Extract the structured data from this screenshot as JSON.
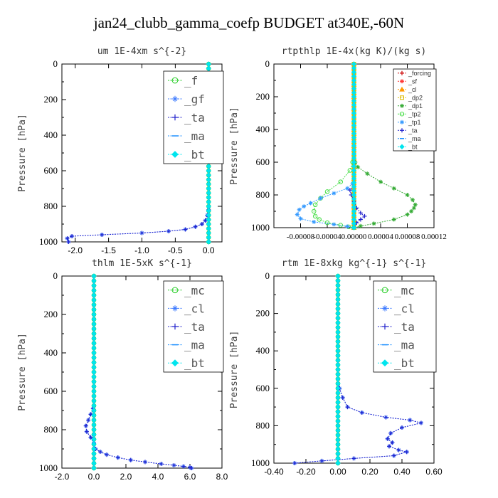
{
  "title": "jan24_clubb_gamma_coefp  BUDGET at340E,-60N",
  "chart_data": [
    {
      "type": "line",
      "title": "um  1E-4xm s^{-2}",
      "ylabel": "Pressure [hPa]",
      "xlim": [
        -2.2,
        0.2
      ],
      "ylim": [
        1000,
        0
      ],
      "xticks": [
        "-2.0",
        "-1.5",
        "-1.0",
        "-0.5",
        "0.0"
      ],
      "xtick_values": [
        -2.0,
        -1.5,
        -1.0,
        -0.5,
        0.0
      ],
      "yticks": [
        "0",
        "200",
        "400",
        "600",
        "800",
        "1000"
      ],
      "ytick_values": [
        0,
        200,
        400,
        600,
        800,
        1000
      ],
      "legend_placement": "top-right",
      "series": [
        {
          "name": "_f",
          "color": "#22cc22",
          "marker": "circle-open",
          "x": [
            0,
            0
          ],
          "y": [
            0,
            1000
          ]
        },
        {
          "name": "_gf",
          "color": "#3a78ff",
          "marker": "star",
          "x": [
            0,
            0,
            0,
            -0.02,
            -0.05,
            -0.1,
            -0.2,
            -0.35,
            -0.6,
            -1.0,
            -1.6,
            -2.05,
            -2.12,
            -2.1
          ],
          "y": [
            0,
            600,
            820,
            850,
            880,
            900,
            915,
            930,
            940,
            950,
            960,
            968,
            980,
            1000
          ]
        },
        {
          "name": "_ta",
          "color": "#2222cc",
          "marker": "plus",
          "x": [
            0,
            0,
            0,
            -0.02,
            -0.05,
            -0.1,
            -0.2,
            -0.35,
            -0.6,
            -1.0,
            -1.6,
            -2.05,
            -2.12,
            -2.1
          ],
          "y": [
            0,
            600,
            820,
            850,
            880,
            900,
            915,
            930,
            940,
            950,
            960,
            968,
            980,
            1000
          ]
        },
        {
          "name": "_ma",
          "color": "#1e90ff",
          "marker": "dash",
          "x": [
            0,
            0
          ],
          "y": [
            0,
            1000
          ]
        },
        {
          "name": "_bt",
          "color": "#00e5ee",
          "marker": "diamond",
          "x": [
            0,
            0
          ],
          "y": [
            0,
            1000
          ]
        }
      ]
    },
    {
      "type": "line",
      "title": "rtpthlp  1E-4x(kg K)/(kg s)",
      "ylabel": "Pressure [hPa]",
      "xlim": [
        -0.00012,
        0.00012
      ],
      "ylim": [
        1000,
        0
      ],
      "xticks": [
        "-0.00008",
        "-0.00004",
        "0.00000",
        "0.00004",
        "0.00008",
        "0.00012"
      ],
      "xtick_values": [
        -8e-05,
        -4e-05,
        0.0,
        4e-05,
        8e-05,
        0.00012
      ],
      "yticks": [
        "0",
        "200",
        "400",
        "600",
        "800",
        "1000"
      ],
      "ytick_values": [
        0,
        200,
        400,
        600,
        800,
        1000
      ],
      "legend_placement": "top-right",
      "series": [
        {
          "name": "_forcing",
          "color": "#cc0000",
          "marker": "plus",
          "x": [
            0,
            0
          ],
          "y": [
            0,
            1000
          ]
        },
        {
          "name": "_sf",
          "color": "#ff3333",
          "marker": "star",
          "x": [
            0,
            0
          ],
          "y": [
            0,
            1000
          ]
        },
        {
          "name": "_cl",
          "color": "#ff9900",
          "marker": "triangle",
          "x": [
            0,
            0
          ],
          "y": [
            0,
            1000
          ]
        },
        {
          "name": "_dp2",
          "color": "#ddbb00",
          "marker": "square",
          "x": [
            0,
            0
          ],
          "y": [
            0,
            1000
          ]
        },
        {
          "name": "_dp1",
          "color": "#33aa33",
          "marker": "star",
          "x": [
            0,
            0,
            2e-06,
            6e-06,
            2e-05,
            4e-05,
            6e-05,
            8e-05,
            8.8e-05,
            9.2e-05,
            9e-05,
            8.6e-05,
            8e-05,
            6e-05,
            3e-05,
            1e-05,
            0
          ],
          "y": [
            0,
            580,
            600,
            630,
            670,
            720,
            760,
            800,
            830,
            860,
            880,
            900,
            920,
            950,
            975,
            990,
            1000
          ]
        },
        {
          "name": "_tp2",
          "color": "#44dd44",
          "marker": "circle-open",
          "x": [
            0,
            0,
            -2e-06,
            -6e-06,
            -2e-05,
            -4e-05,
            -5e-05,
            -5.8e-05,
            -6e-05,
            -5.8e-05,
            -5.2e-05,
            -4e-05,
            -2e-05,
            -8e-06,
            0
          ],
          "y": [
            0,
            580,
            600,
            650,
            720,
            780,
            820,
            860,
            900,
            930,
            950,
            970,
            985,
            995,
            1000
          ]
        },
        {
          "name": "_tp1",
          "color": "#3399ff",
          "marker": "star",
          "x": [
            0,
            0,
            -2e-06,
            -1e-05,
            -3e-05,
            -5e-05,
            -6.5e-05,
            -7.5e-05,
            -8.2e-05,
            -8.5e-05,
            -8e-05,
            -6e-05,
            -3e-05,
            -1e-05,
            0
          ],
          "y": [
            0,
            700,
            730,
            760,
            790,
            820,
            850,
            870,
            890,
            920,
            945,
            965,
            980,
            993,
            1000
          ]
        },
        {
          "name": "_ta",
          "color": "#2222cc",
          "marker": "plus",
          "x": [
            0,
            0,
            -6e-06,
            -4e-06,
            0,
            4e-06,
            1e-05,
            1.6e-05,
            1e-05,
            4e-06,
            0
          ],
          "y": [
            0,
            740,
            770,
            800,
            840,
            880,
            910,
            930,
            950,
            970,
            1000
          ]
        },
        {
          "name": "_ma",
          "color": "#1e90ff",
          "marker": "dash",
          "x": [
            0,
            0
          ],
          "y": [
            0,
            1000
          ]
        },
        {
          "name": "_bt",
          "color": "#00e5ee",
          "marker": "diamond",
          "x": [
            0,
            0
          ],
          "y": [
            0,
            1000
          ]
        }
      ]
    },
    {
      "type": "line",
      "title": "thlm  1E-5xK s^{-1}",
      "ylabel": "Pressure [hPa]",
      "xlim": [
        -2.0,
        8.0
      ],
      "ylim": [
        1000,
        0
      ],
      "xticks": [
        "-2.0",
        "0.0",
        "2.0",
        "4.0",
        "6.0",
        "8.0"
      ],
      "xtick_values": [
        -2.0,
        0.0,
        2.0,
        4.0,
        6.0,
        8.0
      ],
      "yticks": [
        "0",
        "200",
        "400",
        "600",
        "800",
        "1000"
      ],
      "ytick_values": [
        0,
        200,
        400,
        600,
        800,
        1000
      ],
      "legend_placement": "top-right",
      "series": [
        {
          "name": "_mc",
          "color": "#22cc22",
          "marker": "circle-open",
          "x": [
            0,
            0
          ],
          "y": [
            0,
            1000
          ]
        },
        {
          "name": "_cl",
          "color": "#3a78ff",
          "marker": "star",
          "x": [
            0,
            0,
            -0.05,
            -0.2,
            -0.35,
            -0.5,
            -0.45,
            -0.2,
            0,
            0.1,
            0.4,
            0.8,
            1.5,
            2.3,
            3.2,
            4.2,
            5.0,
            5.6,
            6.0,
            6.1
          ],
          "y": [
            0,
            650,
            690,
            720,
            750,
            780,
            810,
            840,
            870,
            900,
            915,
            930,
            945,
            958,
            968,
            978,
            985,
            991,
            996,
            1000
          ]
        },
        {
          "name": "_ta",
          "color": "#2222cc",
          "marker": "plus",
          "x": [
            0,
            0,
            -0.05,
            -0.2,
            -0.35,
            -0.5,
            -0.45,
            -0.2,
            0,
            0.1,
            0.4,
            0.8,
            1.5,
            2.3,
            3.2,
            4.2,
            5.0,
            5.6,
            6.0,
            6.1
          ],
          "y": [
            0,
            650,
            690,
            720,
            750,
            780,
            810,
            840,
            870,
            900,
            915,
            930,
            945,
            958,
            968,
            978,
            985,
            991,
            996,
            1000
          ]
        },
        {
          "name": "_ma",
          "color": "#1e90ff",
          "marker": "dash",
          "x": [
            0,
            0
          ],
          "y": [
            0,
            1000
          ]
        },
        {
          "name": "_bt",
          "color": "#00e5ee",
          "marker": "diamond",
          "x": [
            0,
            0
          ],
          "y": [
            0,
            1000
          ]
        }
      ]
    },
    {
      "type": "line",
      "title": "rtm  1E-8xkg kg^{-1} s^{-1}",
      "ylabel": "Pressure [hPa]",
      "xlim": [
        -0.4,
        0.6
      ],
      "ylim": [
        1000,
        0
      ],
      "xticks": [
        "-0.40",
        "-0.20",
        "0.00",
        "0.20",
        "0.40",
        "0.60"
      ],
      "xtick_values": [
        -0.4,
        -0.2,
        0.0,
        0.2,
        0.4,
        0.6
      ],
      "yticks": [
        "0",
        "200",
        "400",
        "600",
        "800",
        "1000"
      ],
      "ytick_values": [
        0,
        200,
        400,
        600,
        800,
        1000
      ],
      "legend_placement": "top-right",
      "series": [
        {
          "name": "_mc",
          "color": "#22cc22",
          "marker": "circle-open",
          "x": [
            0,
            0
          ],
          "y": [
            0,
            1000
          ]
        },
        {
          "name": "_cl",
          "color": "#3a78ff",
          "marker": "star",
          "x": [
            0,
            0,
            0.01,
            0.03,
            0.06,
            0.15,
            0.3,
            0.45,
            0.52,
            0.4,
            0.33,
            0.31,
            0.34,
            0.32,
            0.38,
            0.43,
            0.35,
            0.1,
            -0.1,
            -0.27
          ],
          "y": [
            0,
            550,
            600,
            650,
            700,
            730,
            755,
            770,
            785,
            810,
            840,
            870,
            890,
            910,
            930,
            940,
            960,
            975,
            988,
            1000
          ]
        },
        {
          "name": "_ta",
          "color": "#2222cc",
          "marker": "plus",
          "x": [
            0,
            0,
            0.01,
            0.03,
            0.06,
            0.15,
            0.3,
            0.45,
            0.52,
            0.4,
            0.33,
            0.31,
            0.34,
            0.32,
            0.38,
            0.43,
            0.35,
            0.1,
            -0.1,
            -0.27
          ],
          "y": [
            0,
            550,
            600,
            650,
            700,
            730,
            755,
            770,
            785,
            810,
            840,
            870,
            890,
            910,
            930,
            940,
            960,
            975,
            988,
            1000
          ]
        },
        {
          "name": "_ma",
          "color": "#1e90ff",
          "marker": "dash",
          "x": [
            0,
            0
          ],
          "y": [
            0,
            1000
          ]
        },
        {
          "name": "_bt",
          "color": "#00e5ee",
          "marker": "diamond",
          "x": [
            0,
            0
          ],
          "y": [
            0,
            1000
          ]
        }
      ]
    }
  ]
}
